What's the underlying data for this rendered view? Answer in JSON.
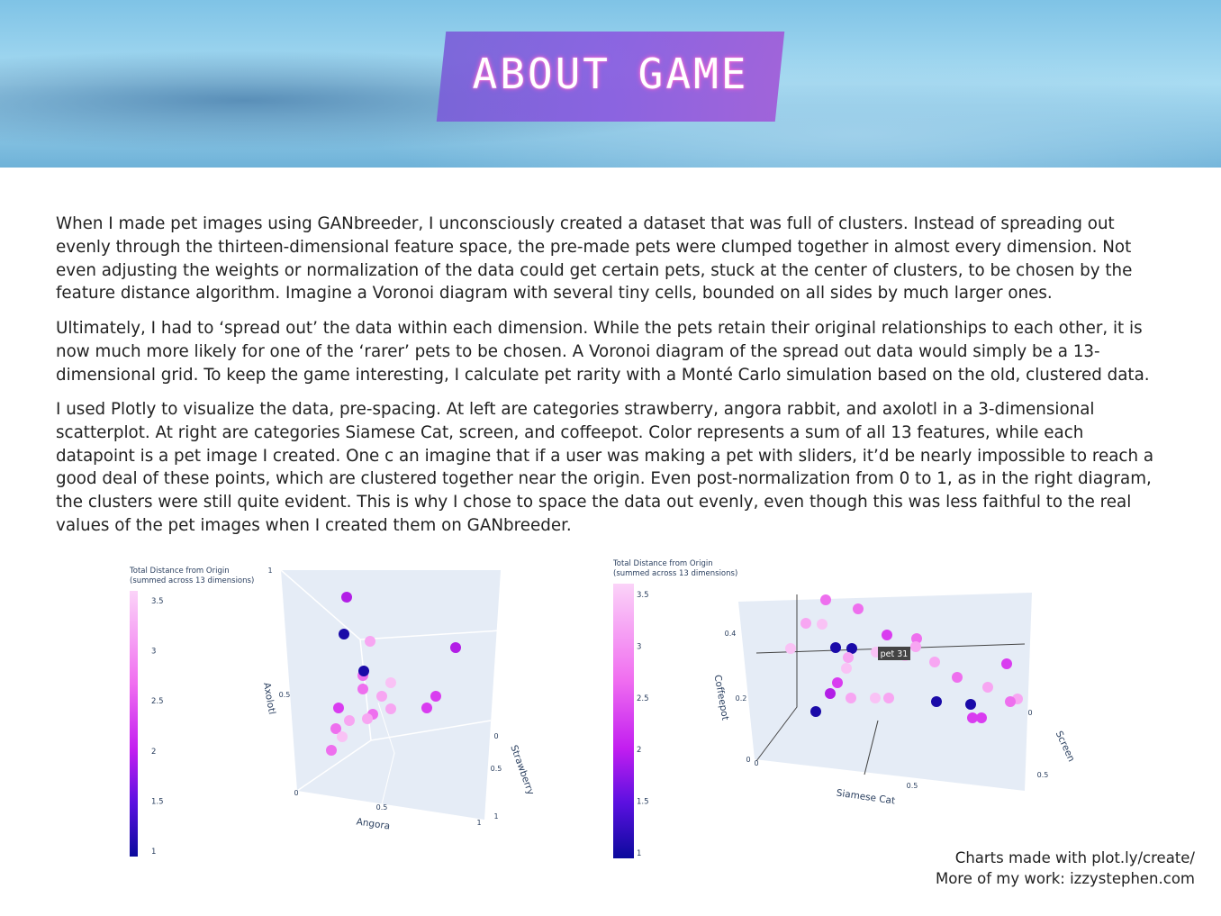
{
  "header": {
    "title": "ABOUT GAME"
  },
  "paragraphs": [
    "When I made pet images using GANbreeder, I unconsciously created a dataset that was full of clusters. Instead of spreading out evenly through the thirteen-dimensional feature space, the pre-made pets were clumped together in almost every dimension. Not even adjusting the weights or normalization of the data could get certain pets, stuck at the center of clusters, to be chosen by the feature distance algorithm. Imagine a Voronoi diagram with several tiny cells, bounded on all sides by much larger ones.",
    "Ultimately, I had to ‘spread out’ the data within each dimension. While the pets retain their original relationships to each other, it is now much more likely for one of the ‘rarer’ pets to be chosen. A Voronoi diagram of the spread out data would simply be a 13-dimensional grid. To keep the game interesting, I calculate pet rarity with a Monté Carlo simulation based on the old, clustered data.",
    "I used Plotly to visualize the data, pre-spacing. At left are categories strawberry, angora rabbit, and axolotl in a 3-dimensional scatterplot. At right are categories Siamese Cat, screen, and coffeepot. Color represents a sum of all 13 features, while each datapoint is a pet image I created. One c an imagine that if a user was making a pet with sliders, it’d be nearly impossible to reach a good deal of these points, which are clustered together near the origin. Even post-normalization from 0 to 1, as in the right diagram, the clusters were still quite evident. This is why I chose to space the data out evenly, even though this was less faithful to the real values of the pet images when I created them on GANbreeder."
  ],
  "figures": [
    {
      "colorbar_title": [
        "Total Distance from Origin",
        "(summed across 13 dimensions)"
      ],
      "colorbar_ticks": [
        3.5,
        3,
        2.5,
        2,
        1.5,
        1
      ],
      "axes": [
        {
          "label": "Axolotl",
          "ticks": [
            1,
            0.5
          ]
        },
        {
          "label": "Angora",
          "ticks": [
            0,
            0.5,
            1
          ]
        },
        {
          "label": "Strawberry",
          "ticks": [
            0,
            0.5,
            1
          ]
        }
      ]
    },
    {
      "colorbar_title": [
        "Total Distance from Origin",
        "(summed across 13 dimensions)"
      ],
      "colorbar_ticks": [
        3.5,
        3,
        2.5,
        2,
        1.5,
        1
      ],
      "axes": [
        {
          "label": "Coffeepot",
          "ticks": [
            0.4,
            0.2,
            0
          ]
        },
        {
          "label": "Siamese Cat",
          "ticks": [
            0,
            0.5
          ]
        },
        {
          "label": "Screen",
          "ticks": [
            0,
            0.5
          ]
        }
      ],
      "tooltip": "pet 31"
    }
  ],
  "footer": [
    "Charts made with plot.ly/create/",
    "More of my work: izzystephen.com"
  ]
}
